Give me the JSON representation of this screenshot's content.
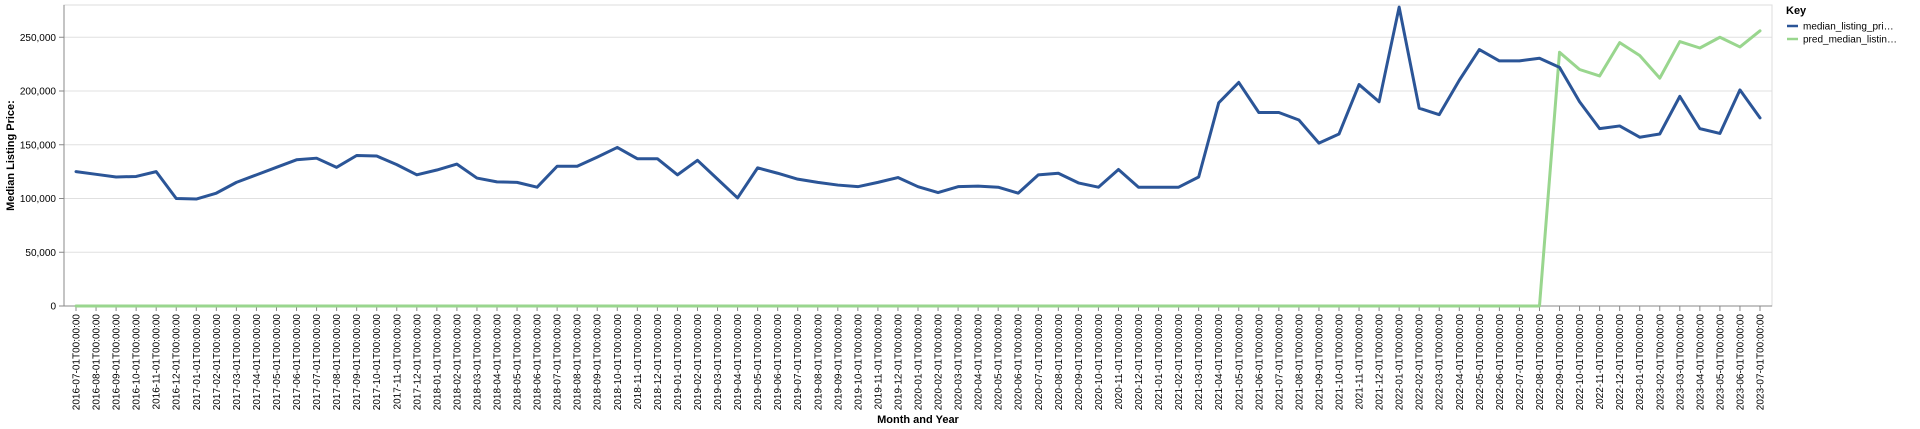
{
  "chart_data": {
    "type": "line",
    "xlabel": "Month and Year",
    "ylabel": "Median Listing Price:",
    "ylim": [
      0,
      280000
    ],
    "yticks": [
      "0",
      "50,000",
      "100,000",
      "150,000",
      "200,000",
      "250,000"
    ],
    "ytick_values": [
      0,
      50000,
      100000,
      150000,
      200000,
      250000
    ],
    "grid": true,
    "legend": {
      "title": "Key",
      "placement": "top-right",
      "entries": [
        "median_listing_pri…",
        "pred_median_listin…"
      ]
    },
    "x": [
      "2016-07-01T00:00:00",
      "2016-08-01T00:00:00",
      "2016-09-01T00:00:00",
      "2016-10-01T00:00:00",
      "2016-11-01T00:00:00",
      "2016-12-01T00:00:00",
      "2017-01-01T00:00:00",
      "2017-02-01T00:00:00",
      "2017-03-01T00:00:00",
      "2017-04-01T00:00:00",
      "2017-05-01T00:00:00",
      "2017-06-01T00:00:00",
      "2017-07-01T00:00:00",
      "2017-08-01T00:00:00",
      "2017-09-01T00:00:00",
      "2017-10-01T00:00:00",
      "2017-11-01T00:00:00",
      "2017-12-01T00:00:00",
      "2018-01-01T00:00:00",
      "2018-02-01T00:00:00",
      "2018-03-01T00:00:00",
      "2018-04-01T00:00:00",
      "2018-05-01T00:00:00",
      "2018-06-01T00:00:00",
      "2018-07-01T00:00:00",
      "2018-08-01T00:00:00",
      "2018-09-01T00:00:00",
      "2018-10-01T00:00:00",
      "2018-11-01T00:00:00",
      "2018-12-01T00:00:00",
      "2019-01-01T00:00:00",
      "2019-02-01T00:00:00",
      "2019-03-01T00:00:00",
      "2019-04-01T00:00:00",
      "2019-05-01T00:00:00",
      "2019-06-01T00:00:00",
      "2019-07-01T00:00:00",
      "2019-08-01T00:00:00",
      "2019-09-01T00:00:00",
      "2019-10-01T00:00:00",
      "2019-11-01T00:00:00",
      "2019-12-01T00:00:00",
      "2020-01-01T00:00:00",
      "2020-02-01T00:00:00",
      "2020-03-01T00:00:00",
      "2020-04-01T00:00:00",
      "2020-05-01T00:00:00",
      "2020-06-01T00:00:00",
      "2020-07-01T00:00:00",
      "2020-08-01T00:00:00",
      "2020-09-01T00:00:00",
      "2020-10-01T00:00:00",
      "2020-11-01T00:00:00",
      "2020-12-01T00:00:00",
      "2021-01-01T00:00:00",
      "2021-02-01T00:00:00",
      "2021-03-01T00:00:00",
      "2021-04-01T00:00:00",
      "2021-05-01T00:00:00",
      "2021-06-01T00:00:00",
      "2021-07-01T00:00:00",
      "2021-08-01T00:00:00",
      "2021-09-01T00:00:00",
      "2021-10-01T00:00:00",
      "2021-11-01T00:00:00",
      "2021-12-01T00:00:00",
      "2022-01-01T00:00:00",
      "2022-02-01T00:00:00",
      "2022-03-01T00:00:00",
      "2022-04-01T00:00:00",
      "2022-05-01T00:00:00",
      "2022-06-01T00:00:00",
      "2022-07-01T00:00:00",
      "2022-08-01T00:00:00",
      "2022-09-01T00:00:00",
      "2022-10-01T00:00:00",
      "2022-11-01T00:00:00",
      "2022-12-01T00:00:00",
      "2023-01-01T00:00:00",
      "2023-02-01T00:00:00",
      "2023-03-01T00:00:00",
      "2023-04-01T00:00:00",
      "2023-05-01T00:00:00",
      "2023-06-01T00:00:00",
      "2023-07-01T00:00:00"
    ],
    "series": [
      {
        "name": "median_listing_pri…",
        "color": "#2b5597",
        "values": [
          125000,
          122500,
          120000,
          120500,
          125000,
          100000,
          99500,
          105000,
          115000,
          122000,
          129000,
          136000,
          137500,
          129000,
          140000,
          139500,
          131500,
          122000,
          126500,
          132000,
          119000,
          115500,
          115000,
          110500,
          130000,
          130000,
          138500,
          147500,
          137000,
          137000,
          122000,
          135500,
          118000,
          100500,
          128500,
          123500,
          118000,
          115000,
          112500,
          111000,
          115000,
          119500,
          111000,
          105500,
          111000,
          111500,
          110500,
          105000,
          122000,
          123500,
          114500,
          110500,
          127000,
          110500,
          110500,
          110500,
          120000,
          189000,
          208000,
          180000,
          180000,
          173000,
          151500,
          160000,
          206000,
          190000,
          278000,
          184000,
          178000,
          210000,
          238500,
          228000,
          228000,
          230500,
          222000,
          190000,
          165000,
          167500,
          157000,
          160000,
          195000,
          165000,
          160500,
          201000,
          175000
        ]
      },
      {
        "name": "pred_median_listin…",
        "color": "#99d68e",
        "values": [
          0,
          0,
          0,
          0,
          0,
          0,
          0,
          0,
          0,
          0,
          0,
          0,
          0,
          0,
          0,
          0,
          0,
          0,
          0,
          0,
          0,
          0,
          0,
          0,
          0,
          0,
          0,
          0,
          0,
          0,
          0,
          0,
          0,
          0,
          0,
          0,
          0,
          0,
          0,
          0,
          0,
          0,
          0,
          0,
          0,
          0,
          0,
          0,
          0,
          0,
          0,
          0,
          0,
          0,
          0,
          0,
          0,
          0,
          0,
          0,
          0,
          0,
          0,
          0,
          0,
          0,
          0,
          0,
          0,
          0,
          0,
          0,
          0,
          0,
          236000,
          220000,
          214000,
          245000,
          233000,
          212000,
          246000,
          240000,
          250000,
          241000,
          256000
        ]
      }
    ]
  }
}
